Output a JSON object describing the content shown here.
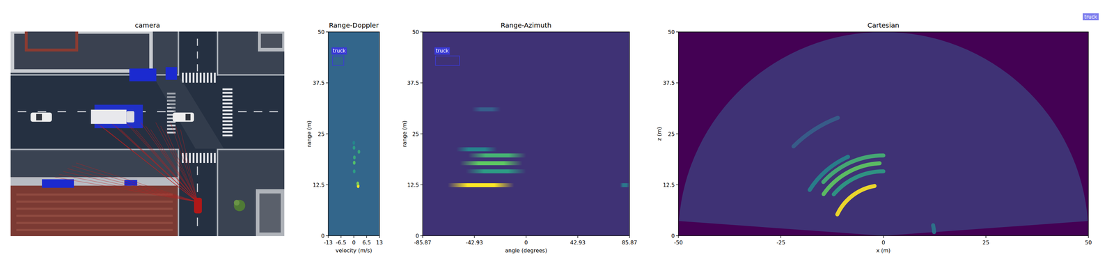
{
  "figure": {
    "legend": [
      {
        "label": "truck",
        "color": "#7f7fee"
      }
    ]
  },
  "camera": {
    "title": "camera"
  },
  "chart_data": [
    {
      "type": "heatmap",
      "title": "Range-Doppler",
      "x_label": "velocity (m/s)",
      "y_label": "range (m)",
      "xlim": [
        -13,
        13
      ],
      "ylim": [
        0,
        50
      ],
      "xticks": [
        -13,
        -6.5,
        0,
        6.5,
        13
      ],
      "yticks": [
        0,
        12.5,
        25,
        37.5,
        50
      ],
      "clim": [
        0,
        1
      ],
      "noise_floor": 0.33,
      "returns": [
        {
          "range": 12.2,
          "velocity": 2.2,
          "intensity": 1.0
        },
        {
          "range": 12.8,
          "velocity": 2.0,
          "intensity": 0.8
        },
        {
          "range": 15.8,
          "velocity": 0.2,
          "intensity": 0.55
        },
        {
          "range": 17.9,
          "velocity": 0.2,
          "intensity": 0.7
        },
        {
          "range": 19.2,
          "velocity": 0.3,
          "intensity": 0.6
        },
        {
          "range": 20.6,
          "velocity": 2.6,
          "intensity": 0.6
        },
        {
          "range": 21.6,
          "velocity": 0.1,
          "intensity": 0.55
        },
        {
          "range": 22.8,
          "velocity": 0.0,
          "intensity": 0.45
        }
      ],
      "annotations": [
        {
          "label": "truck",
          "color": "#3b3bd6",
          "range": [
            41.8,
            44.1
          ],
          "velocity": [
            -10.8,
            -5.1
          ]
        }
      ]
    },
    {
      "type": "heatmap",
      "title": "Range-Azimuth",
      "x_label": "angle (degrees)",
      "y_label": "range (m)",
      "xlim": [
        -85.87,
        85.87
      ],
      "ylim": [
        0,
        50
      ],
      "xticks": [
        -85.87,
        -42.93,
        0,
        42.93,
        85.87
      ],
      "yticks": [
        0,
        12.5,
        25,
        37.5,
        50
      ],
      "clim": [
        0,
        1
      ],
      "noise_floor": 0.15,
      "returns": [
        {
          "range": 12.4,
          "angle": [
            -65,
            -10
          ],
          "intensity": 1.0
        },
        {
          "range": 15.8,
          "angle": [
            -50,
            0
          ],
          "intensity": 0.55
        },
        {
          "range": 17.8,
          "angle": [
            -55,
            -3
          ],
          "intensity": 0.75
        },
        {
          "range": 19.7,
          "angle": [
            -48,
            0
          ],
          "intensity": 0.65
        },
        {
          "range": 21.2,
          "angle": [
            -58,
            -24
          ],
          "intensity": 0.45
        },
        {
          "range": 31.0,
          "angle": [
            -45,
            -21
          ],
          "intensity": 0.3
        },
        {
          "range": 12.4,
          "angle": [
            78,
            85.87
          ],
          "intensity": 0.4
        }
      ],
      "annotations": [
        {
          "label": "truck",
          "color": "#3b3bd6",
          "range": [
            41.8,
            44.1
          ],
          "angle": [
            -75.2,
            -55.2
          ]
        }
      ]
    },
    {
      "type": "heatmap",
      "title": "Cartesian",
      "x_label": "x (m)",
      "y_label": "z (m)",
      "xlim": [
        -50,
        50
      ],
      "ylim": [
        0,
        50
      ],
      "xticks": [
        -50,
        -25,
        0,
        25,
        50
      ],
      "yticks": [
        0,
        12.5,
        25,
        37.5,
        50
      ],
      "clim": [
        0,
        1
      ],
      "noise_floor": 0.15,
      "fan": {
        "range": 50,
        "angles": [
          -85.87,
          85.87
        ]
      },
      "returns": [
        {
          "range": 12.4,
          "angle": [
            -65,
            -10
          ],
          "intensity": 1.0
        },
        {
          "range": 15.8,
          "angle": [
            -50,
            0
          ],
          "intensity": 0.55
        },
        {
          "range": 17.8,
          "angle": [
            -55,
            -3
          ],
          "intensity": 0.75
        },
        {
          "range": 19.7,
          "angle": [
            -48,
            0
          ],
          "intensity": 0.65
        },
        {
          "range": 21.2,
          "angle": [
            -58,
            -24
          ],
          "intensity": 0.45
        },
        {
          "range": 31.0,
          "angle": [
            -45,
            -21
          ],
          "intensity": 0.3
        },
        {
          "range": 12.4,
          "angle": [
            78,
            85.87
          ],
          "intensity": 0.4
        }
      ]
    }
  ]
}
